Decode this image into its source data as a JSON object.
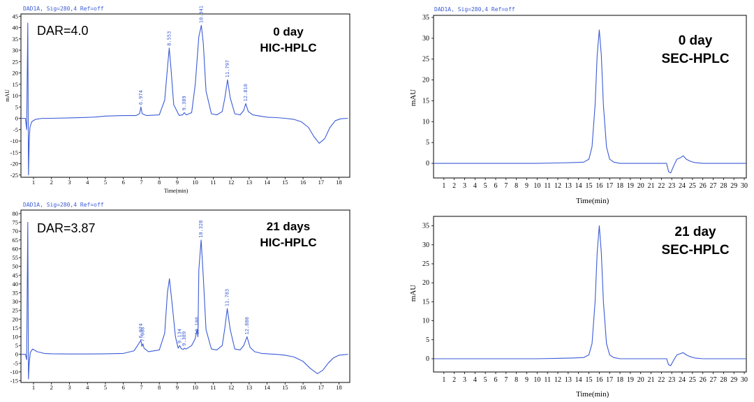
{
  "chart_data": [
    {
      "type": "line",
      "header": "DAD1A, Sig=280,4  Ref=off",
      "xlabel": "Time(min)",
      "ylabel": "mAU",
      "xlim": [
        0.3,
        18.6
      ],
      "ylim": [
        -26,
        46
      ],
      "x_ticks": [
        1,
        2,
        3,
        4,
        5,
        6,
        7,
        8,
        9,
        10,
        11,
        12,
        13,
        14,
        15,
        16,
        17,
        18
      ],
      "y_ticks": [
        -25,
        -20,
        -15,
        -10,
        -5,
        0,
        5,
        10,
        15,
        20,
        25,
        30,
        35,
        40,
        45
      ],
      "dar_text": "DAR=4.0",
      "annotation": [
        "0 day",
        "HIC-HPLC"
      ],
      "series": [
        {
          "x": [
            0.3,
            0.55,
            0.62,
            0.68,
            0.72,
            0.76,
            0.8,
            0.9,
            1.1,
            1.5,
            2,
            3,
            4,
            4.5,
            5,
            5.5,
            6,
            6.7,
            6.9,
            6.974,
            7.05,
            7.3,
            8,
            8.3,
            8.45,
            8.553,
            8.65,
            8.8,
            9.1,
            9.3,
            9.389,
            9.5,
            9.8,
            10,
            10.2,
            10.341,
            10.45,
            10.6,
            10.9,
            11.2,
            11.5,
            11.65,
            11.797,
            11.95,
            12.2,
            12.5,
            12.7,
            12.81,
            12.95,
            13.2,
            13.6,
            14,
            14.5,
            15,
            15.5,
            15.9,
            16.3,
            16.6,
            16.9,
            17.2,
            17.5,
            17.8,
            18.1,
            18.5
          ],
          "y": [
            0,
            0,
            -5,
            42,
            -25,
            -10,
            -4,
            -1.5,
            -0.5,
            0,
            0,
            0.2,
            0.4,
            0.6,
            1,
            1.1,
            1.2,
            1.2,
            2,
            5,
            2,
            1.2,
            1.5,
            8,
            22,
            31,
            22,
            6,
            1.3,
            1.5,
            2.5,
            1.5,
            2.5,
            15,
            36,
            41,
            33,
            12,
            2,
            1.5,
            3,
            9,
            17,
            9,
            2,
            1.5,
            3.5,
            6.5,
            3,
            1.5,
            1,
            0.5,
            0.3,
            0,
            -0.5,
            -1.5,
            -4,
            -8,
            -11,
            -9,
            -4,
            -1,
            -0.2,
            0
          ]
        }
      ],
      "peak_labels": [
        {
          "x": 6.974,
          "y": 5,
          "text": "6.974"
        },
        {
          "x": 8.553,
          "y": 31,
          "text": "8.553"
        },
        {
          "x": 9.389,
          "y": 2.5,
          "text": "9.389"
        },
        {
          "x": 10.341,
          "y": 41,
          "text": "10.341"
        },
        {
          "x": 11.797,
          "y": 17,
          "text": "11.797"
        },
        {
          "x": 12.81,
          "y": 6.5,
          "text": "12.810"
        }
      ]
    },
    {
      "type": "line",
      "header": "DAD1A, Sig=280,4  Ref=off",
      "xlabel": "Time(min)",
      "ylabel": "mAU",
      "xlim": [
        0.3,
        18.6
      ],
      "ylim": [
        -16,
        82
      ],
      "x_ticks": [
        1,
        2,
        3,
        4,
        5,
        6,
        7,
        8,
        9,
        10,
        11,
        12,
        13,
        14,
        15,
        16,
        17,
        18
      ],
      "y_ticks": [
        -15,
        -10,
        -5,
        0,
        5,
        10,
        15,
        20,
        25,
        30,
        35,
        40,
        45,
        50,
        55,
        60,
        65,
        70,
        75,
        80
      ],
      "dar_text": "DAR=3.87",
      "annotation": [
        "21 days",
        "HIC-HPLC"
      ],
      "series": [
        {
          "x": [
            0.3,
            0.55,
            0.62,
            0.68,
            0.72,
            0.76,
            0.82,
            0.95,
            1.2,
            1.6,
            2,
            3,
            4,
            5,
            6,
            6.6,
            6.85,
            6.974,
            7.03,
            7.088,
            7.15,
            7.4,
            8,
            8.3,
            8.45,
            8.565,
            8.7,
            8.9,
            9.05,
            9.134,
            9.22,
            9.35,
            9.389,
            9.5,
            9.8,
            10,
            10.1,
            10.15,
            10.2,
            10.328,
            10.45,
            10.6,
            10.9,
            11.2,
            11.5,
            11.65,
            11.783,
            11.95,
            12.2,
            12.5,
            12.7,
            12.88,
            13.05,
            13.3,
            13.7,
            14,
            14.5,
            15,
            15.5,
            16,
            16.4,
            16.8,
            17.1,
            17.4,
            17.7,
            18,
            18.5
          ],
          "y": [
            0,
            0,
            -3,
            75,
            -14,
            -5,
            1,
            3,
            1.5,
            0.5,
            0.3,
            0.2,
            0.2,
            0.3,
            0.5,
            2,
            6,
            8,
            4.5,
            6,
            3.5,
            1.5,
            2.5,
            12,
            35,
            43,
            30,
            10,
            3.5,
            5,
            3.2,
            2.8,
            3.5,
            3,
            5,
            9,
            14,
            10,
            48,
            65,
            44,
            14,
            3,
            2.5,
            5,
            15,
            26,
            14,
            3,
            2.5,
            5,
            10,
            4,
            1.5,
            0.5,
            0.3,
            0,
            -0.5,
            -1.5,
            -4,
            -8,
            -11,
            -9,
            -5,
            -2,
            -0.5,
            0
          ]
        }
      ],
      "peak_labels": [
        {
          "x": 6.974,
          "y": 8,
          "text": "6.974"
        },
        {
          "x": 7.088,
          "y": 6,
          "text": "7.088"
        },
        {
          "x": 9.134,
          "y": 5,
          "text": "9.134"
        },
        {
          "x": 9.389,
          "y": 3.5,
          "text": "9.389"
        },
        {
          "x": 10.108,
          "y": 10,
          "text": "10.108"
        },
        {
          "x": 10.328,
          "y": 65,
          "text": "10.328"
        },
        {
          "x": 11.783,
          "y": 26,
          "text": "11.783"
        },
        {
          "x": 12.88,
          "y": 10,
          "text": "12.880"
        }
      ]
    },
    {
      "type": "line",
      "header": "DAD1A, Sig=280,4  Ref=off",
      "xlabel": "Time(min)",
      "ylabel": "mAU",
      "xlim": [
        0,
        30.2
      ],
      "ylim": [
        -3.5,
        35.5
      ],
      "x_ticks": [
        1,
        2,
        3,
        4,
        5,
        6,
        7,
        8,
        9,
        10,
        11,
        12,
        13,
        14,
        15,
        16,
        17,
        18,
        19,
        20,
        21,
        22,
        23,
        24,
        25,
        26,
        27,
        28,
        29,
        30
      ],
      "y_ticks": [
        0,
        5,
        10,
        15,
        20,
        25,
        30,
        35
      ],
      "annotation": [
        "0 day",
        "SEC-HPLC"
      ],
      "series": [
        {
          "x": [
            0,
            5,
            10,
            12,
            13.5,
            14.5,
            15,
            15.3,
            15.6,
            15.8,
            16,
            16.2,
            16.4,
            16.7,
            17,
            17.4,
            18,
            22.5,
            22.7,
            22.9,
            23.2,
            23.5,
            23.8,
            24.1,
            24.4,
            24.8,
            25.2,
            26,
            30.2
          ],
          "y": [
            0,
            0,
            0,
            0.1,
            0.2,
            0.3,
            1,
            4,
            14,
            26,
            32,
            26,
            14,
            4,
            1,
            0.3,
            0,
            0,
            -2,
            -2.3,
            -0.5,
            1,
            1.3,
            1.8,
            1,
            0.5,
            0.2,
            0,
            0
          ]
        }
      ]
    },
    {
      "type": "line",
      "header": "",
      "xlabel": "Time(min)",
      "ylabel": "mAU",
      "xlim": [
        0,
        30.2
      ],
      "ylim": [
        -3.5,
        37.5
      ],
      "x_ticks": [
        1,
        2,
        3,
        4,
        5,
        6,
        7,
        8,
        9,
        10,
        11,
        12,
        13,
        14,
        15,
        16,
        17,
        18,
        19,
        20,
        21,
        22,
        23,
        24,
        25,
        26,
        27,
        28,
        29,
        30
      ],
      "y_ticks": [
        0,
        5,
        10,
        15,
        20,
        25,
        30,
        35
      ],
      "annotation": [
        "21 day",
        "SEC-HPLC"
      ],
      "series": [
        {
          "x": [
            0,
            5,
            10,
            12,
            13.5,
            14.5,
            15,
            15.3,
            15.6,
            15.8,
            16,
            16.2,
            16.4,
            16.7,
            17,
            17.4,
            18,
            22.5,
            22.7,
            22.9,
            23.2,
            23.5,
            23.8,
            24.1,
            24.4,
            24.8,
            25.2,
            26,
            30.2
          ],
          "y": [
            0,
            0,
            0,
            0.1,
            0.2,
            0.3,
            1,
            4,
            15,
            28,
            35,
            28,
            15,
            4,
            1,
            0.3,
            0,
            0,
            -1.6,
            -1.8,
            -0.3,
            1,
            1.3,
            1.6,
            1,
            0.5,
            0.2,
            0,
            0
          ]
        }
      ]
    }
  ]
}
